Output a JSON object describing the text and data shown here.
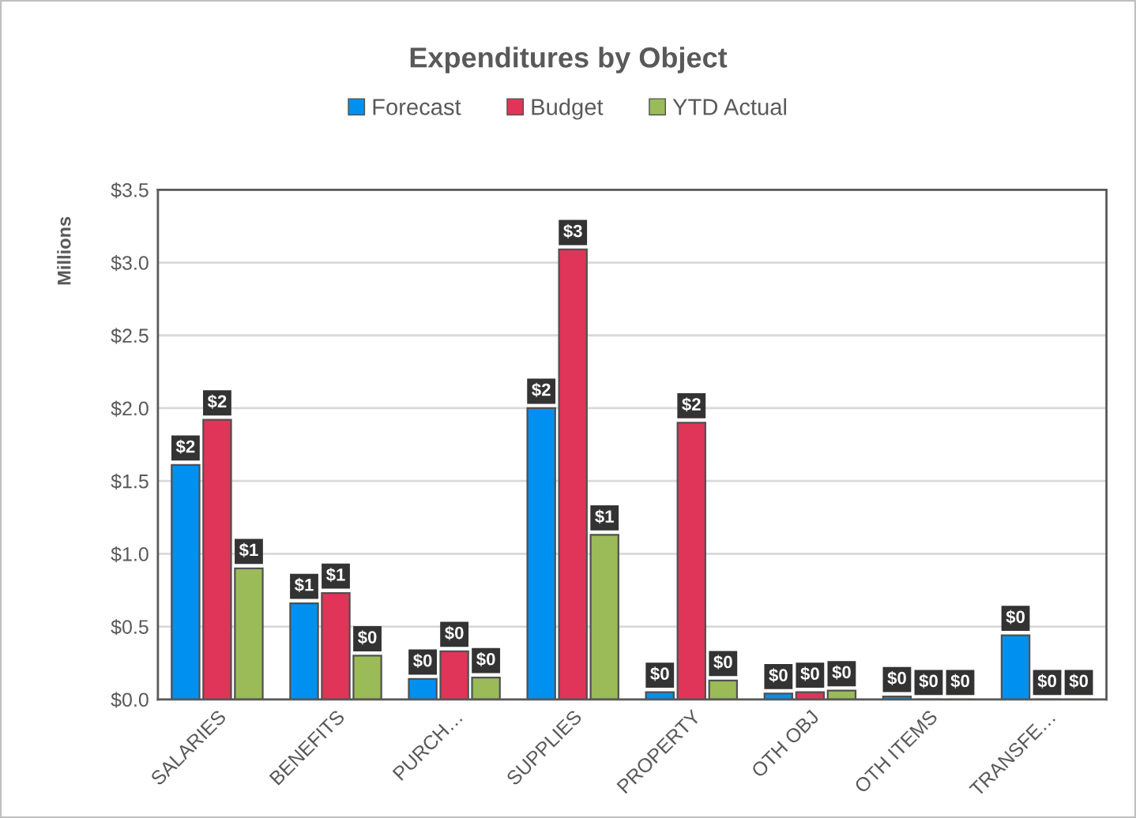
{
  "chart_data": {
    "type": "bar",
    "title": "Expenditures by Object",
    "ylabel": "Millions",
    "categories": [
      "SALARIES",
      "BENEFITS",
      "PURCH…",
      "SUPPLIES",
      "PROPERTY",
      "OTH OBJ",
      "OTH ITEMS",
      "TRANSFE…"
    ],
    "series": [
      {
        "name": "Forecast",
        "color": "#0091f0",
        "values": [
          1.61,
          0.66,
          0.14,
          2.0,
          0.05,
          0.04,
          0.02,
          0.44
        ],
        "value_labels": [
          "$2",
          "$1",
          "$0",
          "$2",
          "$0",
          "$0",
          "$0",
          "$0"
        ]
      },
      {
        "name": "Budget",
        "color": "#e03558",
        "values": [
          1.92,
          0.73,
          0.33,
          3.09,
          1.9,
          0.05,
          0,
          0
        ],
        "value_labels": [
          "$2",
          "$1",
          "$0",
          "$3",
          "$2",
          "$0",
          "$0",
          "$0"
        ]
      },
      {
        "name": "YTD Actual",
        "color": "#9bbb59",
        "values": [
          0.9,
          0.3,
          0.15,
          1.13,
          0.13,
          0.06,
          0,
          0
        ],
        "value_labels": [
          "$1",
          "$0",
          "$0",
          "$1",
          "$0",
          "$0",
          "$0",
          "$0"
        ]
      }
    ],
    "ylim": [
      0,
      3.5
    ],
    "yticks": [
      {
        "value": 0,
        "label": "$0.0"
      },
      {
        "value": 0.5,
        "label": "$0.5"
      },
      {
        "value": 1.0,
        "label": "$1.0"
      },
      {
        "value": 1.5,
        "label": "$1.5"
      },
      {
        "value": 2.0,
        "label": "$2.0"
      },
      {
        "value": 2.5,
        "label": "$2.5"
      },
      {
        "value": 3.0,
        "label": "$3.0"
      },
      {
        "value": 3.5,
        "label": "$3.5"
      }
    ],
    "grid": "y",
    "legend": "top"
  }
}
